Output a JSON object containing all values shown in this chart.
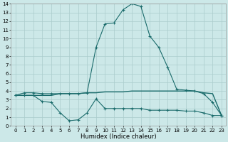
{
  "xlabel": "Humidex (Indice chaleur)",
  "xlim": [
    -0.5,
    23.5
  ],
  "ylim": [
    0,
    14
  ],
  "xticks": [
    0,
    1,
    2,
    3,
    4,
    5,
    6,
    7,
    8,
    9,
    10,
    11,
    12,
    13,
    14,
    15,
    16,
    17,
    18,
    19,
    20,
    21,
    22,
    23
  ],
  "yticks": [
    0,
    1,
    2,
    3,
    4,
    5,
    6,
    7,
    8,
    9,
    10,
    11,
    12,
    13,
    14
  ],
  "bg_color": "#cce8e8",
  "grid_color": "#aacccc",
  "line_color": "#1a6b6b",
  "curve1_x": [
    0,
    1,
    2,
    3,
    4,
    5,
    6,
    7,
    8,
    9,
    10,
    11,
    12,
    13,
    14,
    15,
    16,
    17,
    18,
    19,
    20,
    21,
    22,
    23
  ],
  "curve1_y": [
    3.5,
    3.8,
    3.8,
    3.7,
    3.7,
    3.7,
    3.7,
    3.7,
    3.8,
    9.0,
    11.7,
    11.8,
    13.3,
    14.0,
    13.7,
    10.3,
    9.0,
    6.7,
    4.2,
    4.1,
    4.0,
    3.7,
    2.7,
    1.2
  ],
  "curve2_x": [
    0,
    1,
    2,
    3,
    4,
    5,
    6,
    7,
    8,
    9,
    10,
    11,
    12,
    13,
    14,
    15,
    16,
    17,
    18,
    19,
    20,
    21,
    22,
    23
  ],
  "curve2_y": [
    3.5,
    3.5,
    3.5,
    3.5,
    3.5,
    3.7,
    3.7,
    3.7,
    3.8,
    3.8,
    3.9,
    3.9,
    3.9,
    4.0,
    4.0,
    4.0,
    4.0,
    4.0,
    4.0,
    4.0,
    4.0,
    3.8,
    3.7,
    1.2
  ],
  "curve3_x": [
    0,
    1,
    2,
    3,
    4,
    5,
    6,
    7,
    8,
    9,
    10,
    11,
    12,
    13,
    14,
    15,
    16,
    17,
    18,
    19,
    20,
    21,
    22,
    23
  ],
  "curve3_y": [
    3.5,
    3.5,
    3.5,
    2.8,
    2.7,
    1.5,
    0.6,
    0.7,
    1.5,
    3.1,
    2.0,
    2.0,
    2.0,
    2.0,
    2.0,
    1.8,
    1.8,
    1.8,
    1.8,
    1.7,
    1.7,
    1.5,
    1.2,
    1.2
  ],
  "tick_labelsize": 5,
  "xlabel_fontsize": 6
}
